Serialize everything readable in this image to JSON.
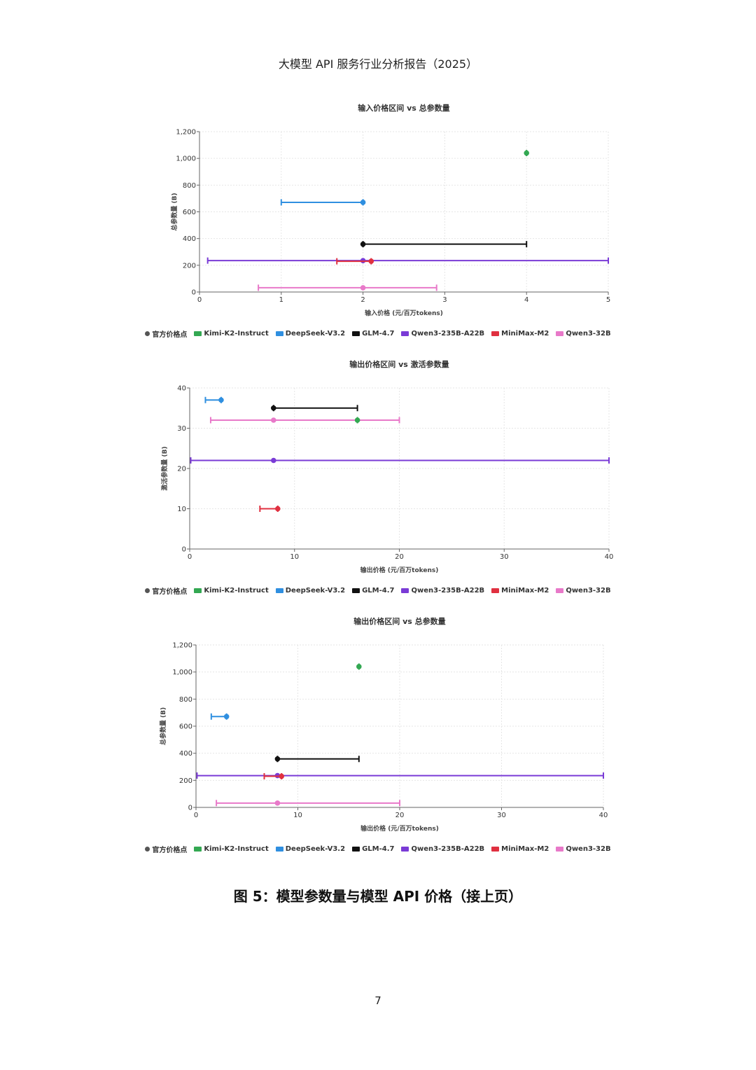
{
  "page": {
    "header": "大模型 API 服务行业分析报告（2025）",
    "caption": "图 5：模型参数量与模型 API 价格（接上页）",
    "page_number": "7"
  },
  "legend": [
    {
      "label": "官方价格点",
      "color": "#555555",
      "shape": "dot"
    },
    {
      "label": "Kimi-K2-Instruct",
      "color": "#33a852",
      "shape": "rect"
    },
    {
      "label": "DeepSeek-V3.2",
      "color": "#2f8fe0",
      "shape": "rect"
    },
    {
      "label": "GLM-4.7",
      "color": "#111111",
      "shape": "rect"
    },
    {
      "label": "Qwen3-235B-A22B",
      "color": "#7a3bd6",
      "shape": "rect"
    },
    {
      "label": "MiniMax-M2",
      "color": "#e03040",
      "shape": "rect"
    },
    {
      "label": "Qwen3-32B",
      "color": "#e879c9",
      "shape": "rect"
    }
  ],
  "chart_data": [
    {
      "type": "range-scatter",
      "title": "输入价格区间 vs 总参数量",
      "xlabel": "输入价格 (元/百万tokens)",
      "ylabel": "总参数量 (B)",
      "xlim": [
        0,
        5
      ],
      "ylim": [
        0,
        1200
      ],
      "xticks": [
        0,
        1,
        2,
        3,
        4,
        5
      ],
      "yticks": [
        0,
        200,
        400,
        600,
        800,
        1000,
        1200
      ],
      "ytick_labels": [
        "0",
        "200",
        "400",
        "600",
        "800",
        "1,000",
        "1,200"
      ],
      "grid": true,
      "legend_position": "bottom",
      "series": [
        {
          "name": "Kimi-K2-Instruct",
          "color": "#33a852",
          "y": 1040,
          "x_min": 4,
          "x_max": 4,
          "official": 4
        },
        {
          "name": "DeepSeek-V3.2",
          "color": "#2f8fe0",
          "y": 671,
          "x_min": 1,
          "x_max": 2,
          "official": 2
        },
        {
          "name": "GLM-4.7",
          "color": "#111111",
          "y": 358,
          "x_min": 2,
          "x_max": 4,
          "official": 2
        },
        {
          "name": "Qwen3-235B-A22B",
          "color": "#7a3bd6",
          "y": 235,
          "x_min": 0.1,
          "x_max": 5,
          "official": 2
        },
        {
          "name": "MiniMax-M2",
          "color": "#e03040",
          "y": 230,
          "x_min": 1.68,
          "x_max": 2.1,
          "official": 2.1
        },
        {
          "name": "Qwen3-32B",
          "color": "#e879c9",
          "y": 32,
          "x_min": 0.72,
          "x_max": 2.9,
          "official": 2
        }
      ]
    },
    {
      "type": "range-scatter",
      "title": "输出价格区间 vs 激活参数量",
      "xlabel": "输出价格 (元/百万tokens)",
      "ylabel": "激活参数量 (B)",
      "xlim": [
        0,
        40
      ],
      "ylim": [
        0,
        40
      ],
      "xticks": [
        0,
        10,
        20,
        30,
        40
      ],
      "yticks": [
        0,
        10,
        20,
        30,
        40
      ],
      "ytick_labels": [
        "0",
        "10",
        "20",
        "30",
        "40"
      ],
      "grid": true,
      "legend_position": "bottom",
      "series": [
        {
          "name": "DeepSeek-V3.2",
          "color": "#2f8fe0",
          "y": 37,
          "x_min": 1.5,
          "x_max": 3,
          "official": 3
        },
        {
          "name": "GLM-4.7",
          "color": "#111111",
          "y": 35,
          "x_min": 8,
          "x_max": 16,
          "official": 8
        },
        {
          "name": "Qwen3-32B",
          "color": "#e879c9",
          "y": 32,
          "x_min": 2,
          "x_max": 20,
          "official": 8
        },
        {
          "name": "Kimi-K2-Instruct",
          "color": "#33a852",
          "y": 32,
          "x_min": 16,
          "x_max": 16,
          "official": 16
        },
        {
          "name": "Qwen3-235B-A22B",
          "color": "#7a3bd6",
          "y": 22,
          "x_min": 0.1,
          "x_max": 40,
          "official": 8
        },
        {
          "name": "MiniMax-M2",
          "color": "#e03040",
          "y": 10,
          "x_min": 6.7,
          "x_max": 8.4,
          "official": 8.4
        }
      ]
    },
    {
      "type": "range-scatter",
      "title": "输出价格区间 vs 总参数量",
      "xlabel": "输出价格 (元/百万tokens)",
      "ylabel": "总参数量 (B)",
      "xlim": [
        0,
        40
      ],
      "ylim": [
        0,
        1200
      ],
      "xticks": [
        0,
        10,
        20,
        30,
        40
      ],
      "yticks": [
        0,
        200,
        400,
        600,
        800,
        1000,
        1200
      ],
      "ytick_labels": [
        "0",
        "200",
        "400",
        "600",
        "800",
        "1,000",
        "1,200"
      ],
      "grid": true,
      "legend_position": "bottom",
      "series": [
        {
          "name": "Kimi-K2-Instruct",
          "color": "#33a852",
          "y": 1040,
          "x_min": 16,
          "x_max": 16,
          "official": 16
        },
        {
          "name": "DeepSeek-V3.2",
          "color": "#2f8fe0",
          "y": 671,
          "x_min": 1.5,
          "x_max": 3,
          "official": 3
        },
        {
          "name": "GLM-4.7",
          "color": "#111111",
          "y": 358,
          "x_min": 8,
          "x_max": 16,
          "official": 8
        },
        {
          "name": "Qwen3-235B-A22B",
          "color": "#7a3bd6",
          "y": 235,
          "x_min": 0.1,
          "x_max": 40,
          "official": 8
        },
        {
          "name": "MiniMax-M2",
          "color": "#e03040",
          "y": 230,
          "x_min": 6.7,
          "x_max": 8.4,
          "official": 8.4
        },
        {
          "name": "Qwen3-32B",
          "color": "#e879c9",
          "y": 32,
          "x_min": 2,
          "x_max": 20,
          "official": 8
        }
      ]
    }
  ]
}
